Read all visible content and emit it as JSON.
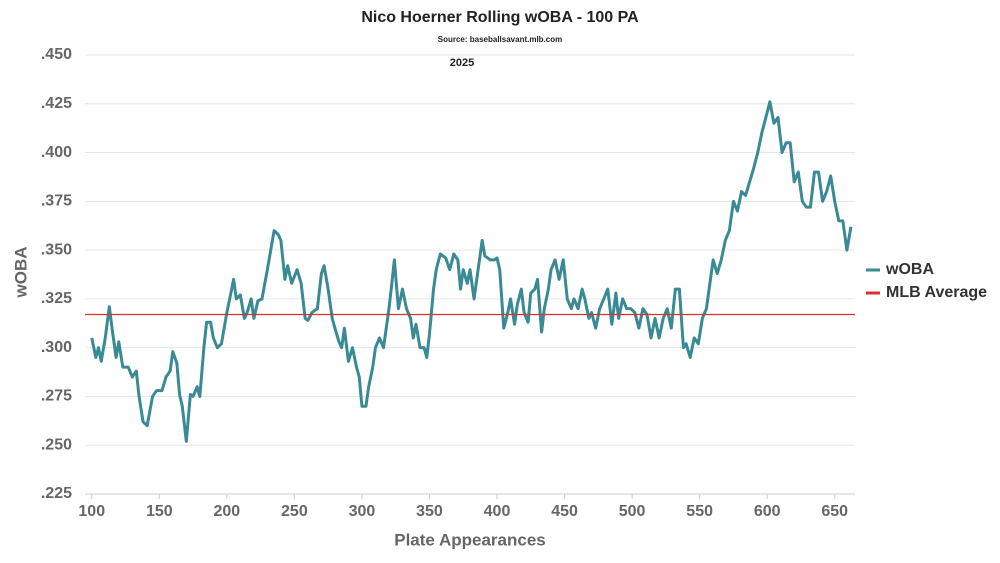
{
  "chart_data": {
    "type": "line",
    "title": "Nico Hoerner Rolling wOBA - 100 PA",
    "subtitle": "Source: baseballsavant.mlb.com",
    "annotation": "2025",
    "x_label": "Plate Appearances",
    "y_label": "wOBA",
    "xlim": [
      95,
      665
    ],
    "xticks": [
      100,
      150,
      200,
      250,
      300,
      350,
      400,
      450,
      500,
      550,
      600,
      650
    ],
    "ylim": [
      0.225,
      0.45
    ],
    "yticks": [
      {
        "value": 0.225,
        "label": ".225"
      },
      {
        "value": 0.25,
        "label": ".250"
      },
      {
        "value": 0.275,
        "label": ".275"
      },
      {
        "value": 0.3,
        "label": ".300"
      },
      {
        "value": 0.325,
        "label": ".325"
      },
      {
        "value": 0.35,
        "label": ".350"
      },
      {
        "value": 0.375,
        "label": ".375"
      },
      {
        "value": 0.4,
        "label": ".400"
      },
      {
        "value": 0.425,
        "label": ".425"
      },
      {
        "value": 0.45,
        "label": ".450"
      }
    ],
    "grid": true,
    "legend": "right",
    "x": [
      100,
      103,
      105,
      107,
      110,
      113,
      115,
      118,
      120,
      123,
      127,
      130,
      133,
      135,
      138,
      141,
      145,
      148,
      152,
      155,
      158,
      160,
      163,
      165,
      167,
      170,
      173,
      175,
      178,
      180,
      183,
      185,
      188,
      190,
      193,
      196,
      198,
      200,
      203,
      205,
      207,
      210,
      213,
      215,
      218,
      220,
      223,
      226,
      230,
      233,
      235,
      238,
      240,
      243,
      245,
      248,
      252,
      255,
      258,
      260,
      263,
      267,
      270,
      272,
      275,
      278,
      280,
      283,
      285,
      287,
      290,
      293,
      296,
      298,
      300,
      303,
      305,
      308,
      310,
      313,
      316,
      318,
      320,
      322,
      324,
      327,
      330,
      333,
      336,
      338,
      340,
      343,
      346,
      348,
      350,
      353,
      355,
      358,
      362,
      365,
      368,
      371,
      373,
      375,
      378,
      380,
      383,
      386,
      389,
      391,
      395,
      398,
      400,
      402,
      405,
      408,
      410,
      413,
      415,
      418,
      420,
      423,
      425,
      428,
      430,
      433,
      435,
      438,
      440,
      443,
      446,
      449,
      452,
      455,
      457,
      460,
      463,
      465,
      468,
      470,
      473,
      476,
      479,
      482,
      485,
      488,
      490,
      493,
      496,
      499,
      502,
      505,
      508,
      511,
      514,
      517,
      520,
      523,
      526,
      529,
      532,
      535,
      538,
      540,
      543,
      546,
      549,
      552,
      555,
      557,
      560,
      563,
      566,
      569,
      572,
      575,
      578,
      581,
      584,
      587,
      590,
      593,
      596,
      599,
      602,
      605,
      608,
      611,
      614,
      617,
      620,
      623,
      626,
      629,
      632,
      635,
      638,
      641,
      644,
      647,
      650,
      653,
      656,
      659,
      662
    ],
    "series": [
      {
        "name": "wOBA",
        "color": "#3a8a96",
        "values": [
          0.305,
          0.295,
          0.3,
          0.293,
          0.305,
          0.321,
          0.31,
          0.295,
          0.303,
          0.29,
          0.29,
          0.285,
          0.288,
          0.275,
          0.262,
          0.26,
          0.275,
          0.278,
          0.278,
          0.285,
          0.288,
          0.298,
          0.292,
          0.276,
          0.27,
          0.252,
          0.276,
          0.275,
          0.28,
          0.275,
          0.3,
          0.313,
          0.313,
          0.305,
          0.3,
          0.302,
          0.31,
          0.318,
          0.328,
          0.335,
          0.325,
          0.327,
          0.315,
          0.318,
          0.325,
          0.315,
          0.324,
          0.325,
          0.34,
          0.352,
          0.36,
          0.358,
          0.355,
          0.335,
          0.342,
          0.333,
          0.34,
          0.333,
          0.315,
          0.314,
          0.318,
          0.32,
          0.338,
          0.342,
          0.33,
          0.315,
          0.31,
          0.303,
          0.3,
          0.31,
          0.293,
          0.3,
          0.29,
          0.285,
          0.27,
          0.27,
          0.28,
          0.29,
          0.3,
          0.305,
          0.3,
          0.31,
          0.32,
          0.332,
          0.345,
          0.32,
          0.33,
          0.32,
          0.315,
          0.305,
          0.312,
          0.3,
          0.3,
          0.295,
          0.307,
          0.33,
          0.34,
          0.348,
          0.346,
          0.34,
          0.348,
          0.345,
          0.33,
          0.34,
          0.333,
          0.34,
          0.325,
          0.34,
          0.355,
          0.347,
          0.345,
          0.345,
          0.346,
          0.34,
          0.31,
          0.318,
          0.325,
          0.312,
          0.322,
          0.33,
          0.318,
          0.313,
          0.328,
          0.33,
          0.335,
          0.308,
          0.32,
          0.33,
          0.34,
          0.345,
          0.335,
          0.345,
          0.325,
          0.32,
          0.325,
          0.32,
          0.33,
          0.325,
          0.315,
          0.318,
          0.31,
          0.32,
          0.325,
          0.33,
          0.312,
          0.328,
          0.315,
          0.325,
          0.32,
          0.32,
          0.318,
          0.31,
          0.32,
          0.317,
          0.305,
          0.315,
          0.305,
          0.315,
          0.32,
          0.31,
          0.33,
          0.33,
          0.3,
          0.302,
          0.295,
          0.305,
          0.302,
          0.315,
          0.32,
          0.33,
          0.345,
          0.338,
          0.345,
          0.355,
          0.36,
          0.375,
          0.37,
          0.38,
          0.378,
          0.385,
          0.392,
          0.4,
          0.41,
          0.418,
          0.426,
          0.415,
          0.418,
          0.4,
          0.405,
          0.405,
          0.385,
          0.39,
          0.375,
          0.372,
          0.372,
          0.39,
          0.39,
          0.375,
          0.38,
          0.388,
          0.375,
          0.365,
          0.365,
          0.35,
          0.362
        ]
      },
      {
        "name": "MLB Average",
        "color": "#d9322b",
        "reference": 0.317
      }
    ]
  }
}
